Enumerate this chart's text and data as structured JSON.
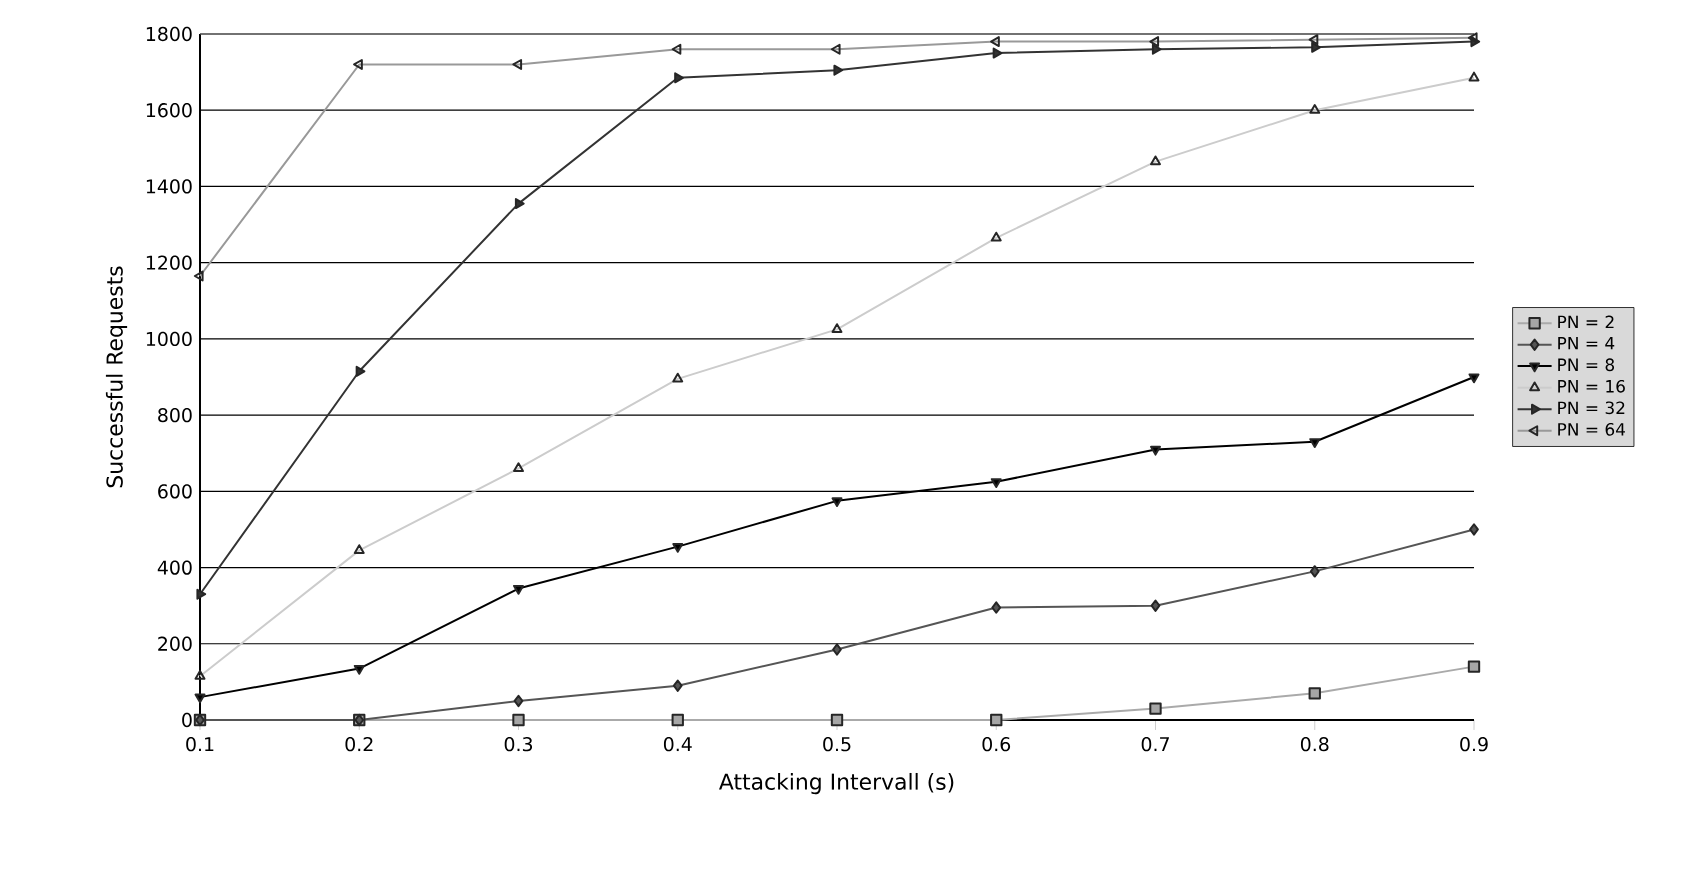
{
  "chart_data": {
    "type": "line",
    "xlabel": "Attacking Intervall (s)",
    "ylabel": "Successful Requests",
    "x": [
      0.1,
      0.2,
      0.3,
      0.4,
      0.5,
      0.6,
      0.7,
      0.8,
      0.9
    ],
    "series": [
      {
        "name": "PN = 2",
        "color": "#aaaaaa",
        "marker": "square",
        "values": [
          0,
          0,
          0,
          0,
          0,
          0,
          30,
          70,
          140
        ]
      },
      {
        "name": "PN = 4",
        "color": "#555555",
        "marker": "diamond",
        "values": [
          0,
          0,
          50,
          90,
          185,
          295,
          300,
          390,
          500
        ]
      },
      {
        "name": "PN = 8",
        "color": "#000000",
        "marker": "triangle-down",
        "values": [
          60,
          135,
          345,
          455,
          575,
          625,
          710,
          730,
          900
        ]
      },
      {
        "name": "PN = 16",
        "color": "#cccccc",
        "marker": "triangle",
        "values": [
          115,
          445,
          660,
          895,
          1025,
          1265,
          1465,
          1600,
          1685
        ]
      },
      {
        "name": "PN = 32",
        "color": "#333333",
        "marker": "triangle-right",
        "values": [
          330,
          915,
          1355,
          1685,
          1705,
          1750,
          1760,
          1765,
          1780
        ]
      },
      {
        "name": "PN = 64",
        "color": "#999999",
        "marker": "triangle-left",
        "values": [
          1165,
          1720,
          1720,
          1760,
          1760,
          1780,
          1780,
          1785,
          1790
        ]
      }
    ],
    "xlim": [
      0.1,
      0.9
    ],
    "xticks": [
      0.1,
      0.2,
      0.3,
      0.4,
      0.5,
      0.6,
      0.7,
      0.8,
      0.9
    ],
    "ylim": [
      0,
      1800
    ],
    "yticks": [
      0,
      200,
      400,
      600,
      800,
      1000,
      1200,
      1400,
      1600,
      1800
    ],
    "grid": "y",
    "legend": "right",
    "line_style": "solid"
  }
}
